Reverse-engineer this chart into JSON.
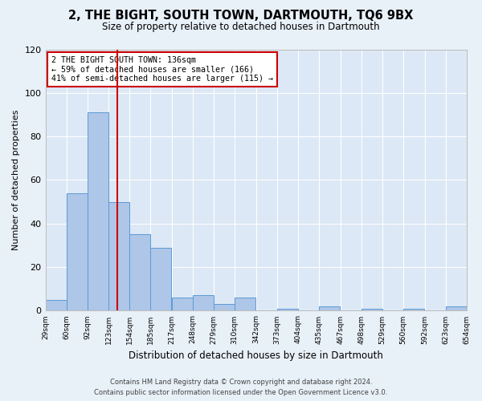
{
  "title": "2, THE BIGHT, SOUTH TOWN, DARTMOUTH, TQ6 9BX",
  "subtitle": "Size of property relative to detached houses in Dartmouth",
  "xlabel": "Distribution of detached houses by size in Dartmouth",
  "ylabel": "Number of detached properties",
  "bar_color": "#aec6e8",
  "bar_edge_color": "#5b9bd5",
  "background_color": "#e8f0f8",
  "plot_bg_color": "#dce8f5",
  "grid_color": "#ffffff",
  "bins_left": [
    29,
    60,
    92,
    123,
    154,
    185,
    217,
    248,
    279,
    310,
    342,
    373,
    404,
    435,
    467,
    498,
    529,
    560,
    592,
    623
  ],
  "bin_width": 31,
  "counts": [
    5,
    54,
    91,
    50,
    35,
    29,
    6,
    7,
    3,
    6,
    0,
    1,
    0,
    2,
    0,
    1,
    0,
    1,
    0,
    2
  ],
  "tick_labels": [
    "29sqm",
    "60sqm",
    "92sqm",
    "123sqm",
    "154sqm",
    "185sqm",
    "217sqm",
    "248sqm",
    "279sqm",
    "310sqm",
    "342sqm",
    "373sqm",
    "404sqm",
    "435sqm",
    "467sqm",
    "498sqm",
    "529sqm",
    "560sqm",
    "592sqm",
    "623sqm",
    "654sqm"
  ],
  "all_ticks": [
    29,
    60,
    92,
    123,
    154,
    185,
    217,
    248,
    279,
    310,
    342,
    373,
    404,
    435,
    467,
    498,
    529,
    560,
    592,
    623,
    654
  ],
  "property_line_x": 136,
  "property_line_color": "#cc0000",
  "annotation_box_color": "#cc0000",
  "annotation_text_line1": "2 THE BIGHT SOUTH TOWN: 136sqm",
  "annotation_text_line2": "← 59% of detached houses are smaller (166)",
  "annotation_text_line3": "41% of semi-detached houses are larger (115) →",
  "ylim": [
    0,
    120
  ],
  "yticks": [
    0,
    20,
    40,
    60,
    80,
    100,
    120
  ],
  "footer_line1": "Contains HM Land Registry data © Crown copyright and database right 2024.",
  "footer_line2": "Contains public sector information licensed under the Open Government Licence v3.0."
}
